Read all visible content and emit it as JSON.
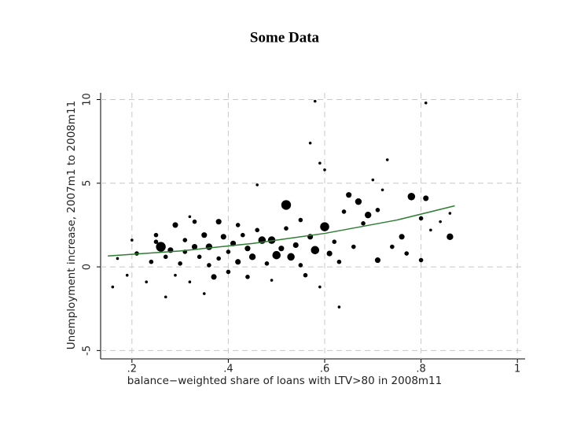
{
  "chart_data": {
    "type": "scatter",
    "title": "Some Data",
    "x_label": "balance−weighted share of loans with LTV>80 in 2008m11",
    "y_label": "Unemployment increase, 2007m1 to 2008m11",
    "xlim": [
      0.135,
      1.016
    ],
    "ylim": [
      -5.5,
      10.4
    ],
    "xticks": [
      {
        "value": 0.2,
        "label": ".2"
      },
      {
        "value": 0.4,
        "label": ".4"
      },
      {
        "value": 0.6,
        "label": ".6"
      },
      {
        "value": 0.8,
        "label": ".8"
      },
      1
    ],
    "yticks": [
      -5,
      0,
      5,
      10
    ],
    "grid": true,
    "series": [
      {
        "color": "#000000",
        "x": [
          0.16,
          0.17,
          0.19,
          0.2,
          0.21,
          0.23,
          0.24,
          0.25,
          0.25,
          0.26,
          0.27,
          0.27,
          0.28,
          0.29,
          0.29,
          0.3,
          0.31,
          0.31,
          0.32,
          0.32,
          0.33,
          0.33,
          0.34,
          0.35,
          0.35,
          0.36,
          0.36,
          0.37,
          0.38,
          0.38,
          0.39,
          0.4,
          0.4,
          0.41,
          0.42,
          0.42,
          0.43,
          0.44,
          0.44,
          0.45,
          0.46,
          0.46,
          0.47,
          0.48,
          0.49,
          0.49,
          0.5,
          0.51,
          0.52,
          0.52,
          0.53,
          0.54,
          0.55,
          0.55,
          0.56,
          0.57,
          0.57,
          0.58,
          0.58,
          0.59,
          0.59,
          0.6,
          0.6,
          0.61,
          0.62,
          0.63,
          0.63,
          0.64,
          0.65,
          0.66,
          0.67,
          0.68,
          0.69,
          0.7,
          0.71,
          0.71,
          0.72,
          0.73,
          0.74,
          0.76,
          0.77,
          0.78,
          0.8,
          0.8,
          0.81,
          0.81,
          0.82,
          0.84,
          0.86,
          0.86
        ],
        "values": [
          -1.2,
          0.5,
          -0.5,
          1.6,
          0.8,
          -0.9,
          0.3,
          1.9,
          1.5,
          1.2,
          -1.8,
          0.6,
          1.0,
          2.5,
          -0.5,
          0.2,
          1.6,
          0.9,
          3.0,
          -0.9,
          2.7,
          1.2,
          0.6,
          1.9,
          -1.6,
          0.1,
          1.2,
          -0.6,
          2.7,
          0.5,
          1.8,
          0.9,
          -0.3,
          1.4,
          2.5,
          0.3,
          1.9,
          -0.6,
          1.1,
          0.6,
          4.9,
          2.2,
          1.6,
          0.2,
          1.6,
          -0.8,
          0.7,
          1.1,
          3.7,
          2.3,
          0.6,
          1.3,
          0.1,
          2.8,
          -0.5,
          7.4,
          1.8,
          1.0,
          9.9,
          6.2,
          -1.2,
          2.4,
          5.8,
          0.8,
          1.5,
          -2.4,
          0.3,
          3.3,
          4.3,
          1.2,
          3.9,
          2.6,
          3.1,
          5.2,
          0.4,
          3.4,
          4.6,
          6.4,
          1.2,
          1.8,
          0.8,
          4.2,
          0.4,
          2.9,
          4.1,
          9.8,
          2.2,
          2.7,
          1.8,
          3.2
        ],
        "sizes": [
          1,
          1,
          1,
          1,
          2,
          1,
          2,
          2,
          2,
          8,
          1,
          2,
          3,
          3,
          1,
          2,
          2,
          2,
          1,
          1,
          2,
          3,
          2,
          3,
          1,
          2,
          4,
          3,
          3,
          2,
          3,
          2,
          2,
          3,
          2,
          3,
          2,
          2,
          3,
          4,
          1,
          2,
          5,
          2,
          5,
          1,
          6,
          3,
          8,
          2,
          5,
          3,
          2,
          2,
          2,
          1,
          3,
          6,
          1,
          1,
          1,
          7,
          1,
          3,
          2,
          1,
          2,
          2,
          3,
          2,
          4,
          2,
          4,
          1,
          3,
          2,
          1,
          1,
          2,
          3,
          2,
          5,
          2,
          2,
          3,
          1,
          1,
          1,
          4,
          1
        ]
      }
    ],
    "fit": {
      "color": "#2e7d32",
      "x": [
        0.15,
        0.3,
        0.45,
        0.6,
        0.75,
        0.87
      ],
      "values": [
        0.65,
        0.95,
        1.4,
        2.0,
        2.8,
        3.65
      ]
    }
  }
}
